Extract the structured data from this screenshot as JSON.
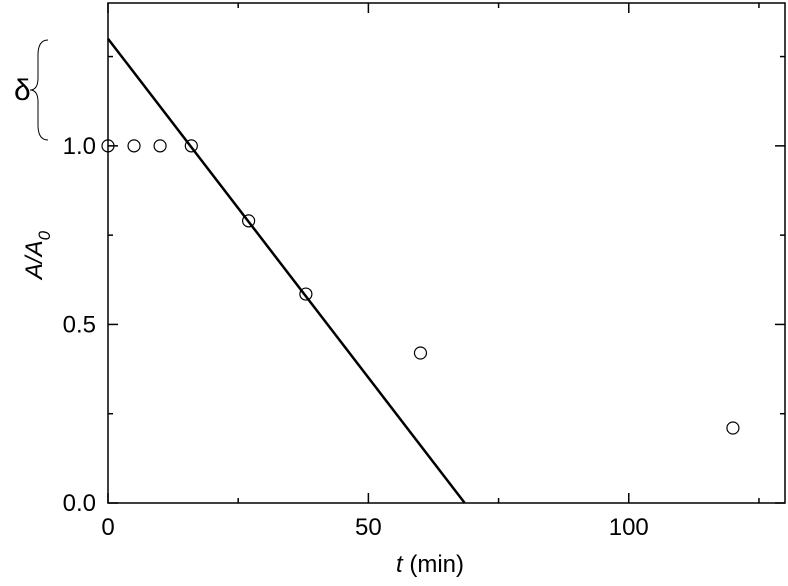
{
  "chart_data": {
    "type": "scatter",
    "x_label": {
      "var": "t",
      "unit": "(min)"
    },
    "y_label": {
      "main": "A/A",
      "sub": "0"
    },
    "annotation": "δ",
    "x": [
      0,
      5,
      10,
      16,
      27,
      38,
      60,
      120
    ],
    "y": [
      1.0,
      1.0,
      1.0,
      1.0,
      0.79,
      0.585,
      0.42,
      0.21
    ],
    "fit_line": {
      "x": [
        0,
        68.5
      ],
      "y": [
        1.3,
        0
      ]
    },
    "color": "#000000",
    "xlim": [
      0,
      130
    ],
    "ylim": [
      0,
      1.4
    ],
    "xticks": [
      0,
      50,
      100
    ],
    "yticks": [
      {
        "value": 0,
        "label": "0.0"
      },
      0.5,
      {
        "value": 1,
        "label": "1.0"
      }
    ],
    "xminorticks": [
      25,
      75,
      125
    ],
    "yminorticks": [
      0.25,
      0.75,
      1.25
    ],
    "grid": false
  }
}
